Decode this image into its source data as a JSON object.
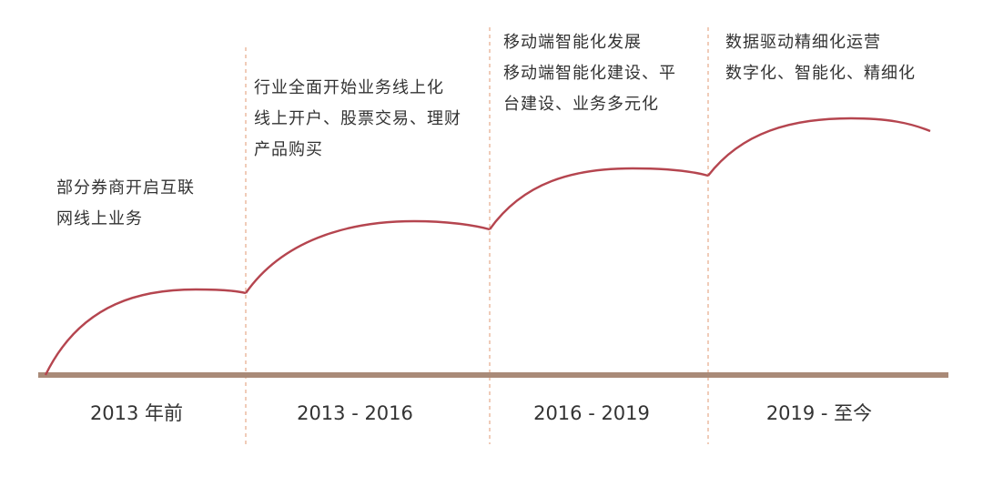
{
  "stages": [
    {
      "period": "2013 年前",
      "lines": [
        "部分券商开启互联",
        "网线上业务"
      ]
    },
    {
      "period": "2013 - 2016",
      "lines": [
        "行业全面开始业务线上化",
        "线上开户、股票交易、理财",
        "产品购买"
      ]
    },
    {
      "period": "2016 - 2019",
      "lines": [
        "移动端智能化发展",
        "移动端智能化建设、平",
        "台建设、业务多元化"
      ]
    },
    {
      "period": "2019 - 至今",
      "lines": [
        "数据驱动精细化运营",
        "数字化、智能化、精细化"
      ]
    }
  ],
  "colors": {
    "curve": "#b5454f",
    "baseline": "#a98a78",
    "divider": "#e7a98a",
    "text": "#333333"
  }
}
